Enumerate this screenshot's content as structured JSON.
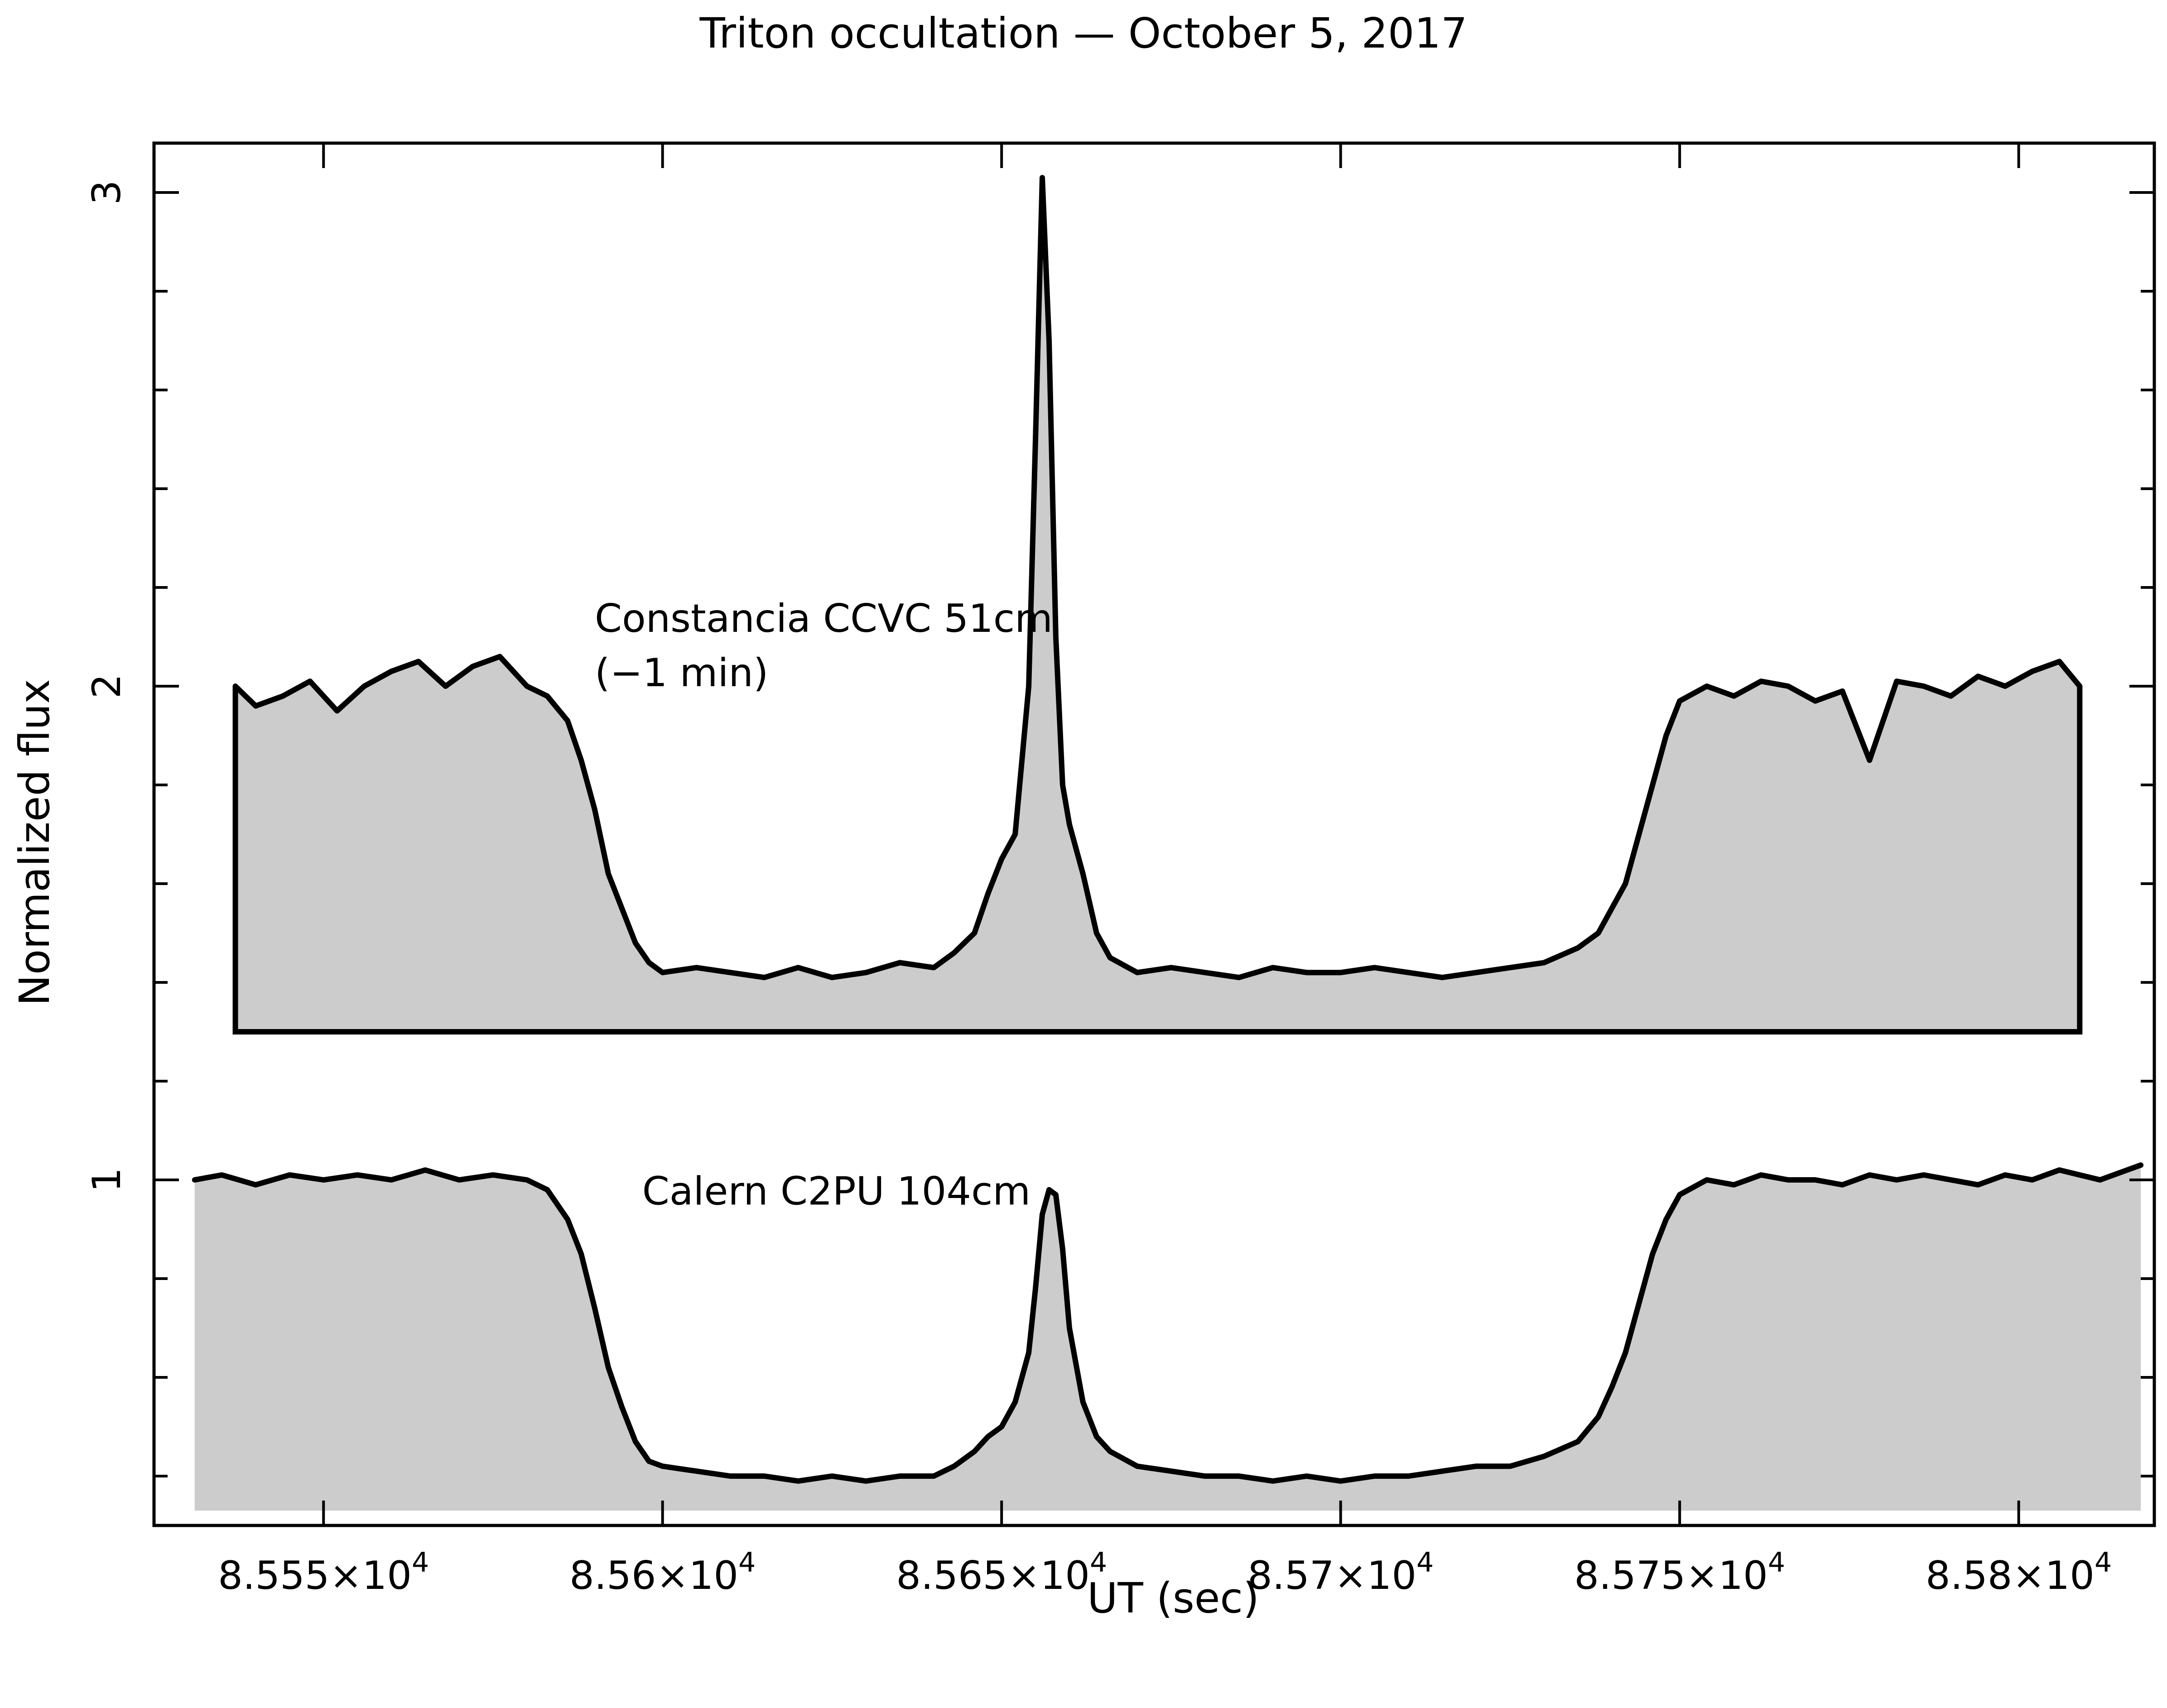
{
  "chart_data": {
    "type": "line",
    "title": "Triton occultation — October 5, 2017",
    "xlabel": "UT (sec)",
    "ylabel": "Normalized flux",
    "xlim": [
      85525,
      85820
    ],
    "ylim": [
      0.3,
      3.1
    ],
    "x_ticks": [
      {
        "value": 85550,
        "mantissa": "8.555",
        "exp": "4"
      },
      {
        "value": 85600,
        "mantissa": "8.56",
        "exp": "4"
      },
      {
        "value": 85650,
        "mantissa": "8.565",
        "exp": "4"
      },
      {
        "value": 85700,
        "mantissa": "8.57",
        "exp": "4"
      },
      {
        "value": 85750,
        "mantissa": "8.575",
        "exp": "4"
      },
      {
        "value": 85800,
        "mantissa": "8.58",
        "exp": "4"
      }
    ],
    "y_ticks": [
      {
        "value": 1,
        "label": "1"
      },
      {
        "value": 2,
        "label": "2"
      },
      {
        "value": 3,
        "label": "3"
      }
    ],
    "y_minor_ticks": [
      0.4,
      0.6,
      0.8,
      1.2,
      1.4,
      1.6,
      1.8,
      2.2,
      2.4,
      2.6,
      2.8
    ],
    "grid": false,
    "legend": "none",
    "fill_color": "#cccccc",
    "line_color": "#000000",
    "series": [
      {
        "name": "Constancia CCVC 51cm",
        "note": "(−1 min)",
        "baseline": 1.3,
        "x": [
          85537,
          85540,
          85544,
          85548,
          85552,
          85556,
          85560,
          85564,
          85568,
          85572,
          85576,
          85580,
          85583,
          85586,
          85588,
          85590,
          85592,
          85594,
          85596,
          85598,
          85600,
          85605,
          85610,
          85615,
          85620,
          85625,
          85630,
          85635,
          85640,
          85643,
          85646,
          85648,
          85650,
          85652,
          85654,
          85655,
          85656,
          85657,
          85658,
          85659,
          85660,
          85662,
          85664,
          85666,
          85670,
          85675,
          85680,
          85685,
          85690,
          85695,
          85700,
          85705,
          85710,
          85715,
          85720,
          85725,
          85730,
          85735,
          85738,
          85740,
          85742,
          85744,
          85746,
          85748,
          85750,
          85754,
          85758,
          85762,
          85766,
          85770,
          85774,
          85778,
          85782,
          85786,
          85790,
          85794,
          85798,
          85802,
          85806,
          85809
        ],
        "y": [
          2.0,
          1.96,
          1.98,
          2.01,
          1.95,
          2.0,
          2.03,
          2.05,
          2.0,
          2.04,
          2.06,
          2.0,
          1.98,
          1.93,
          1.85,
          1.75,
          1.62,
          1.55,
          1.48,
          1.44,
          1.42,
          1.43,
          1.42,
          1.41,
          1.43,
          1.41,
          1.42,
          1.44,
          1.43,
          1.46,
          1.5,
          1.58,
          1.65,
          1.7,
          2.0,
          2.5,
          3.03,
          2.7,
          2.1,
          1.8,
          1.72,
          1.62,
          1.5,
          1.45,
          1.42,
          1.43,
          1.42,
          1.41,
          1.43,
          1.42,
          1.42,
          1.43,
          1.42,
          1.41,
          1.42,
          1.43,
          1.44,
          1.47,
          1.5,
          1.55,
          1.6,
          1.7,
          1.8,
          1.9,
          1.97,
          2.0,
          1.98,
          2.01,
          2.0,
          1.97,
          1.99,
          1.85,
          2.01,
          2.0,
          1.98,
          2.02,
          2.0,
          2.03,
          2.05,
          2.0
        ]
      },
      {
        "name": "Calern C2PU 104cm",
        "baseline": 0.33,
        "x": [
          85531,
          85535,
          85540,
          85545,
          85550,
          85555,
          85560,
          85565,
          85570,
          85575,
          85580,
          85583,
          85586,
          85588,
          85590,
          85592,
          85594,
          85596,
          85598,
          85600,
          85605,
          85610,
          85615,
          85620,
          85625,
          85630,
          85635,
          85640,
          85643,
          85646,
          85648,
          85650,
          85652,
          85654,
          85655,
          85656,
          85657,
          85658,
          85659,
          85660,
          85662,
          85664,
          85666,
          85670,
          85675,
          85680,
          85685,
          85690,
          85695,
          85700,
          85705,
          85710,
          85715,
          85720,
          85725,
          85730,
          85735,
          85738,
          85740,
          85742,
          85744,
          85746,
          85748,
          85750,
          85754,
          85758,
          85762,
          85766,
          85770,
          85774,
          85778,
          85782,
          85786,
          85790,
          85794,
          85798,
          85802,
          85806,
          85812,
          85818
        ],
        "y": [
          1.0,
          1.01,
          0.99,
          1.01,
          1.0,
          1.01,
          1.0,
          1.02,
          1.0,
          1.01,
          1.0,
          0.98,
          0.92,
          0.85,
          0.74,
          0.62,
          0.54,
          0.47,
          0.43,
          0.42,
          0.41,
          0.4,
          0.4,
          0.39,
          0.4,
          0.39,
          0.4,
          0.4,
          0.42,
          0.45,
          0.48,
          0.5,
          0.55,
          0.65,
          0.78,
          0.93,
          0.98,
          0.97,
          0.86,
          0.7,
          0.55,
          0.48,
          0.45,
          0.42,
          0.41,
          0.4,
          0.4,
          0.39,
          0.4,
          0.39,
          0.4,
          0.4,
          0.41,
          0.42,
          0.42,
          0.44,
          0.47,
          0.52,
          0.58,
          0.65,
          0.75,
          0.85,
          0.92,
          0.97,
          1.0,
          0.99,
          1.01,
          1.0,
          1.0,
          0.99,
          1.01,
          1.0,
          1.01,
          1.0,
          0.99,
          1.01,
          1.0,
          1.02,
          1.0,
          1.03
        ]
      }
    ],
    "annotations": [
      {
        "series": 0,
        "text_key": "name",
        "x": 85590,
        "y": 2.11
      },
      {
        "series": 0,
        "text_key": "note",
        "x": 85590,
        "y": 2.0
      },
      {
        "series": 1,
        "text_key": "name",
        "x": 85597,
        "y": 0.95
      }
    ]
  }
}
